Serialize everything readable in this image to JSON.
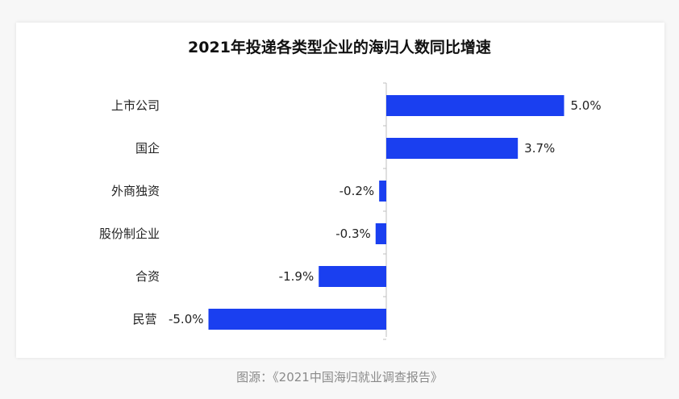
{
  "chart_data": {
    "type": "bar",
    "orientation": "horizontal",
    "title": "2021年投递各类型企业的海归人数同比增速",
    "categories": [
      "上市公司",
      "国企",
      "外商独资",
      "股份制企业",
      "合资",
      "民营"
    ],
    "values": [
      5.0,
      3.7,
      -0.2,
      -0.3,
      -1.9,
      -5.0
    ],
    "value_labels": [
      "5.0%",
      "3.7%",
      "-0.2%",
      "-0.3%",
      "-1.9%",
      "-5.0%"
    ],
    "bar_color": "#1a3ff0",
    "xlim": [
      -5.0,
      5.0
    ]
  },
  "caption": "图源：《2021中国海归就业调查报告》"
}
